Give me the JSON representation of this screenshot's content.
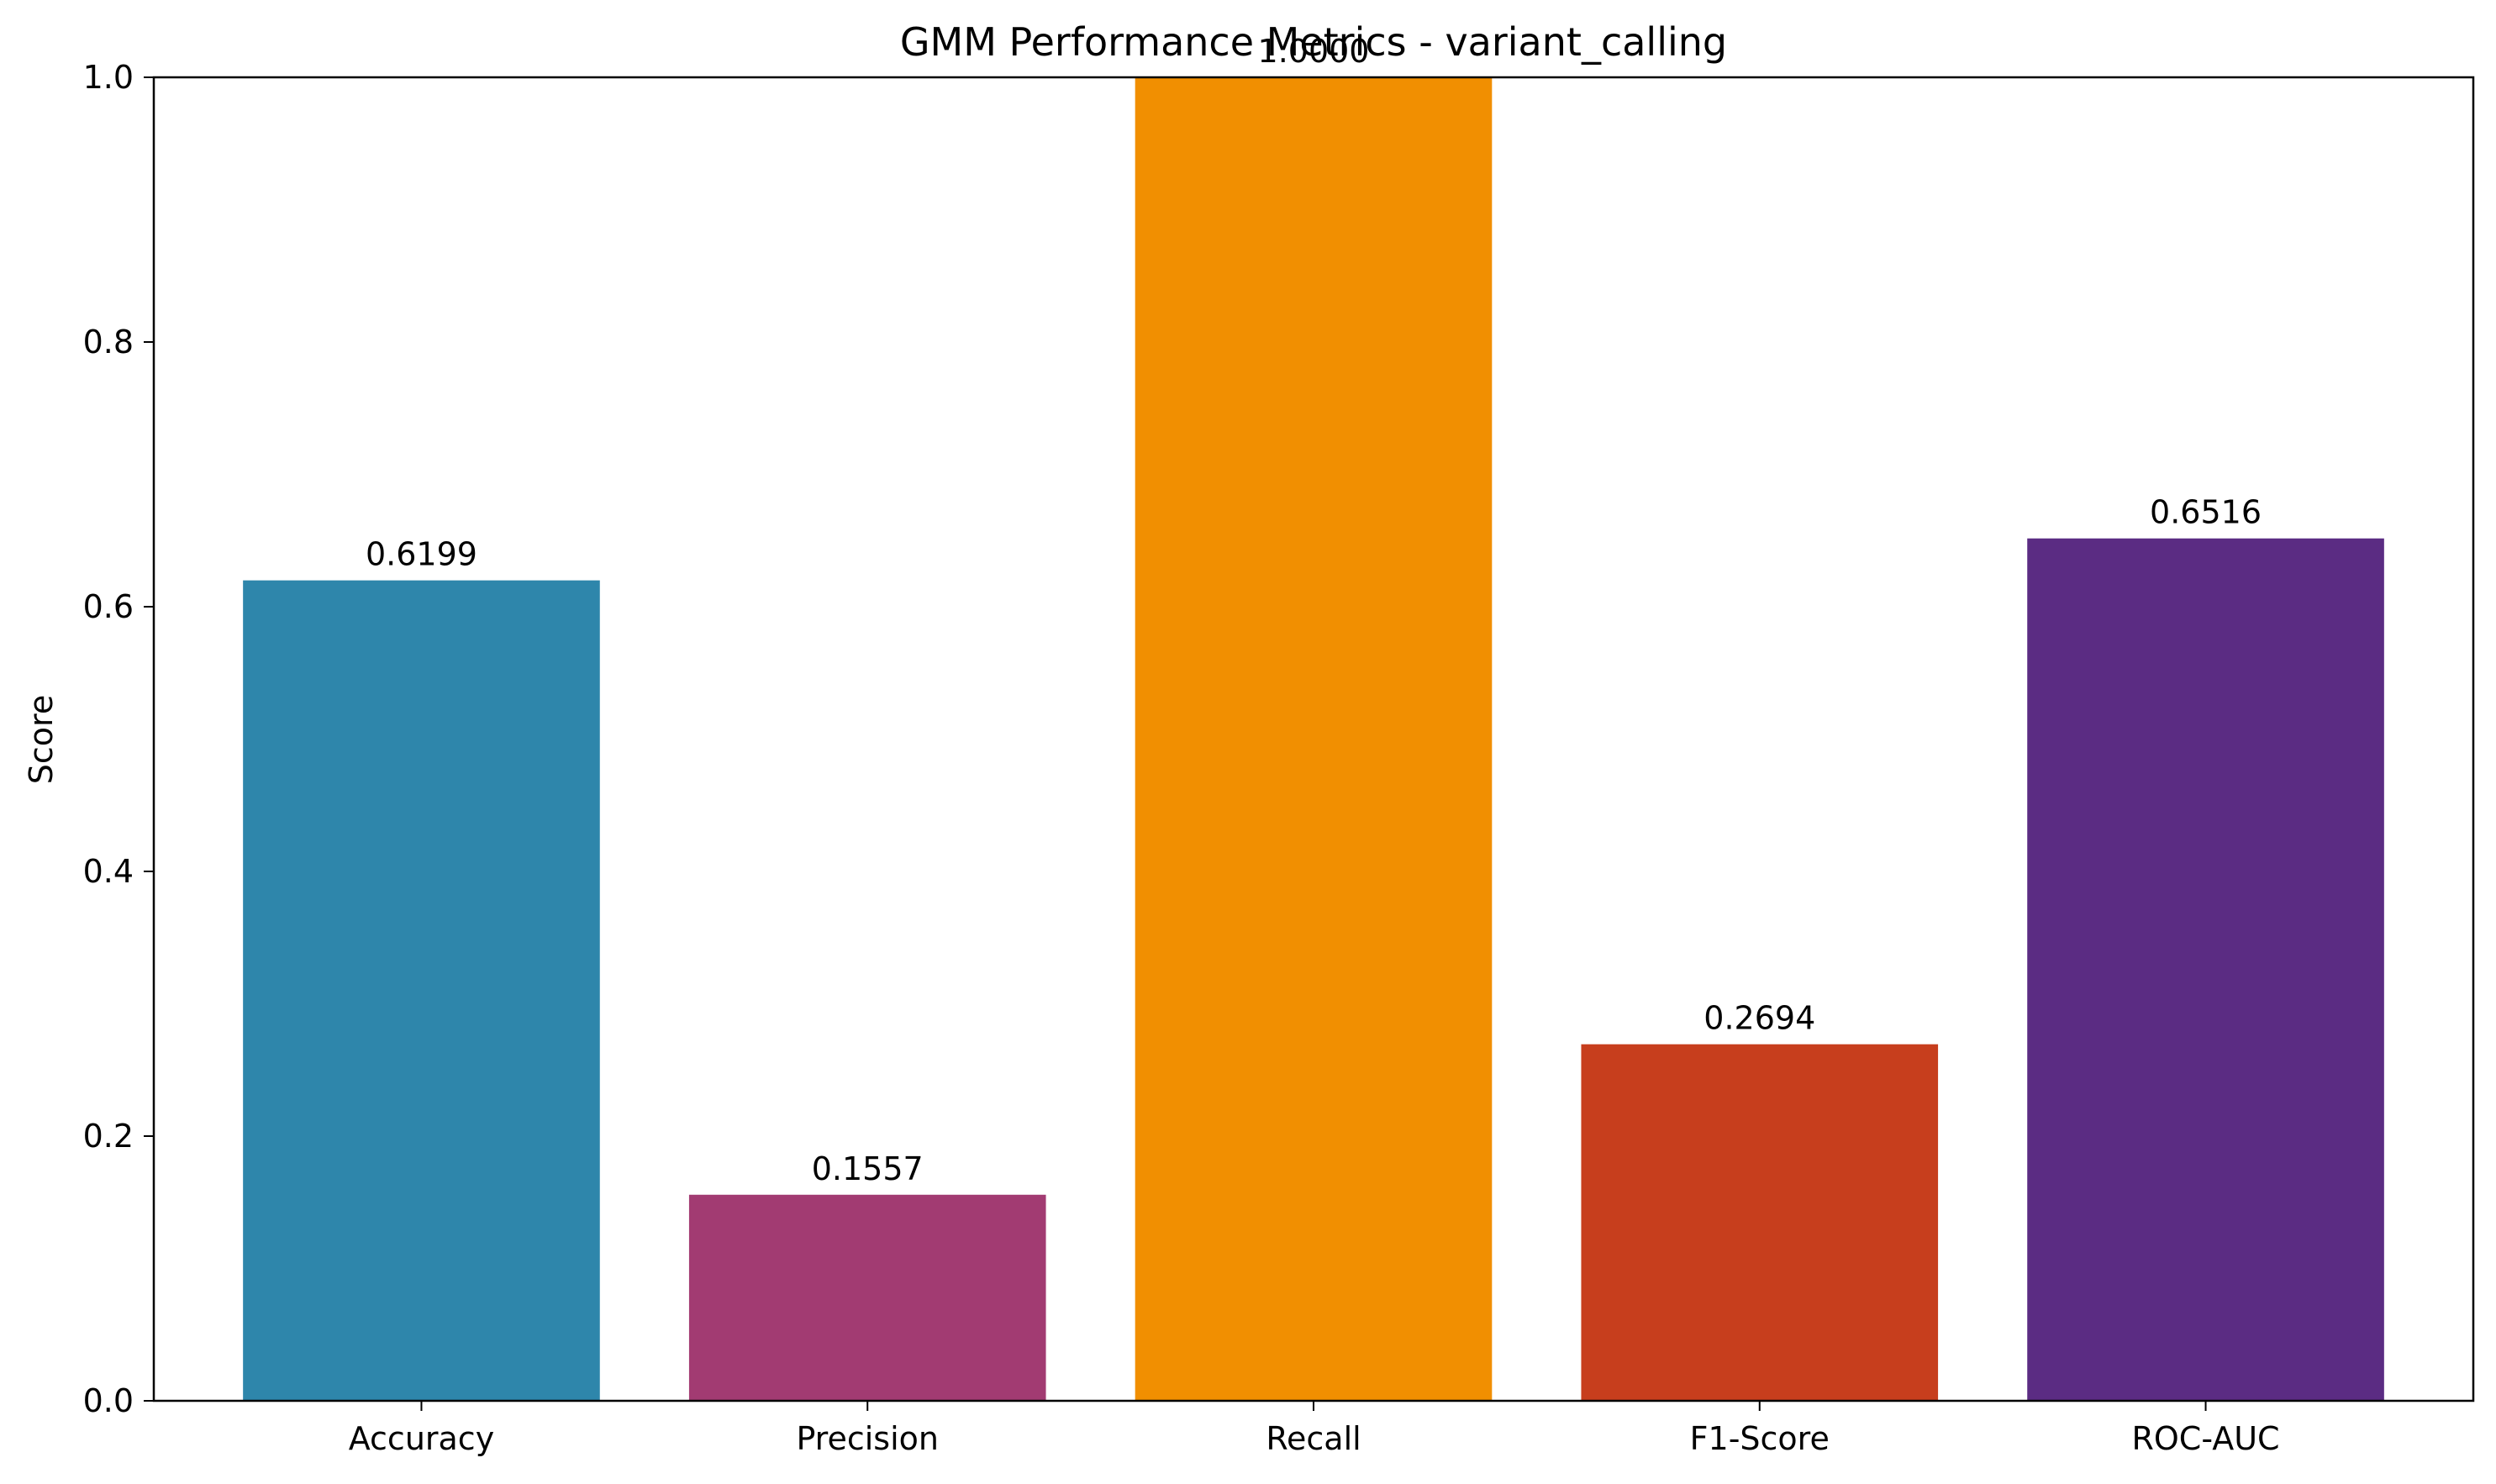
{
  "chart_data": {
    "type": "bar",
    "title": "GMM Performance Metrics - variant_calling",
    "xlabel": "",
    "ylabel": "Score",
    "ylim": [
      0,
      1.0
    ],
    "yticks": [
      "0.0",
      "0.2",
      "0.4",
      "0.6",
      "0.8",
      "1.0"
    ],
    "grid": false,
    "categories": [
      "Accuracy",
      "Precision",
      "Recall",
      "F1-Score",
      "ROC-AUC"
    ],
    "values": [
      0.6199,
      0.1557,
      1.0,
      0.2694,
      0.6516
    ],
    "value_labels": [
      "0.6199",
      "0.1557",
      "1.0000",
      "0.2694",
      "0.6516"
    ],
    "colors": [
      "#2E86AB",
      "#A23B72",
      "#F18F01",
      "#C73E1D",
      "#5B2C83"
    ]
  }
}
